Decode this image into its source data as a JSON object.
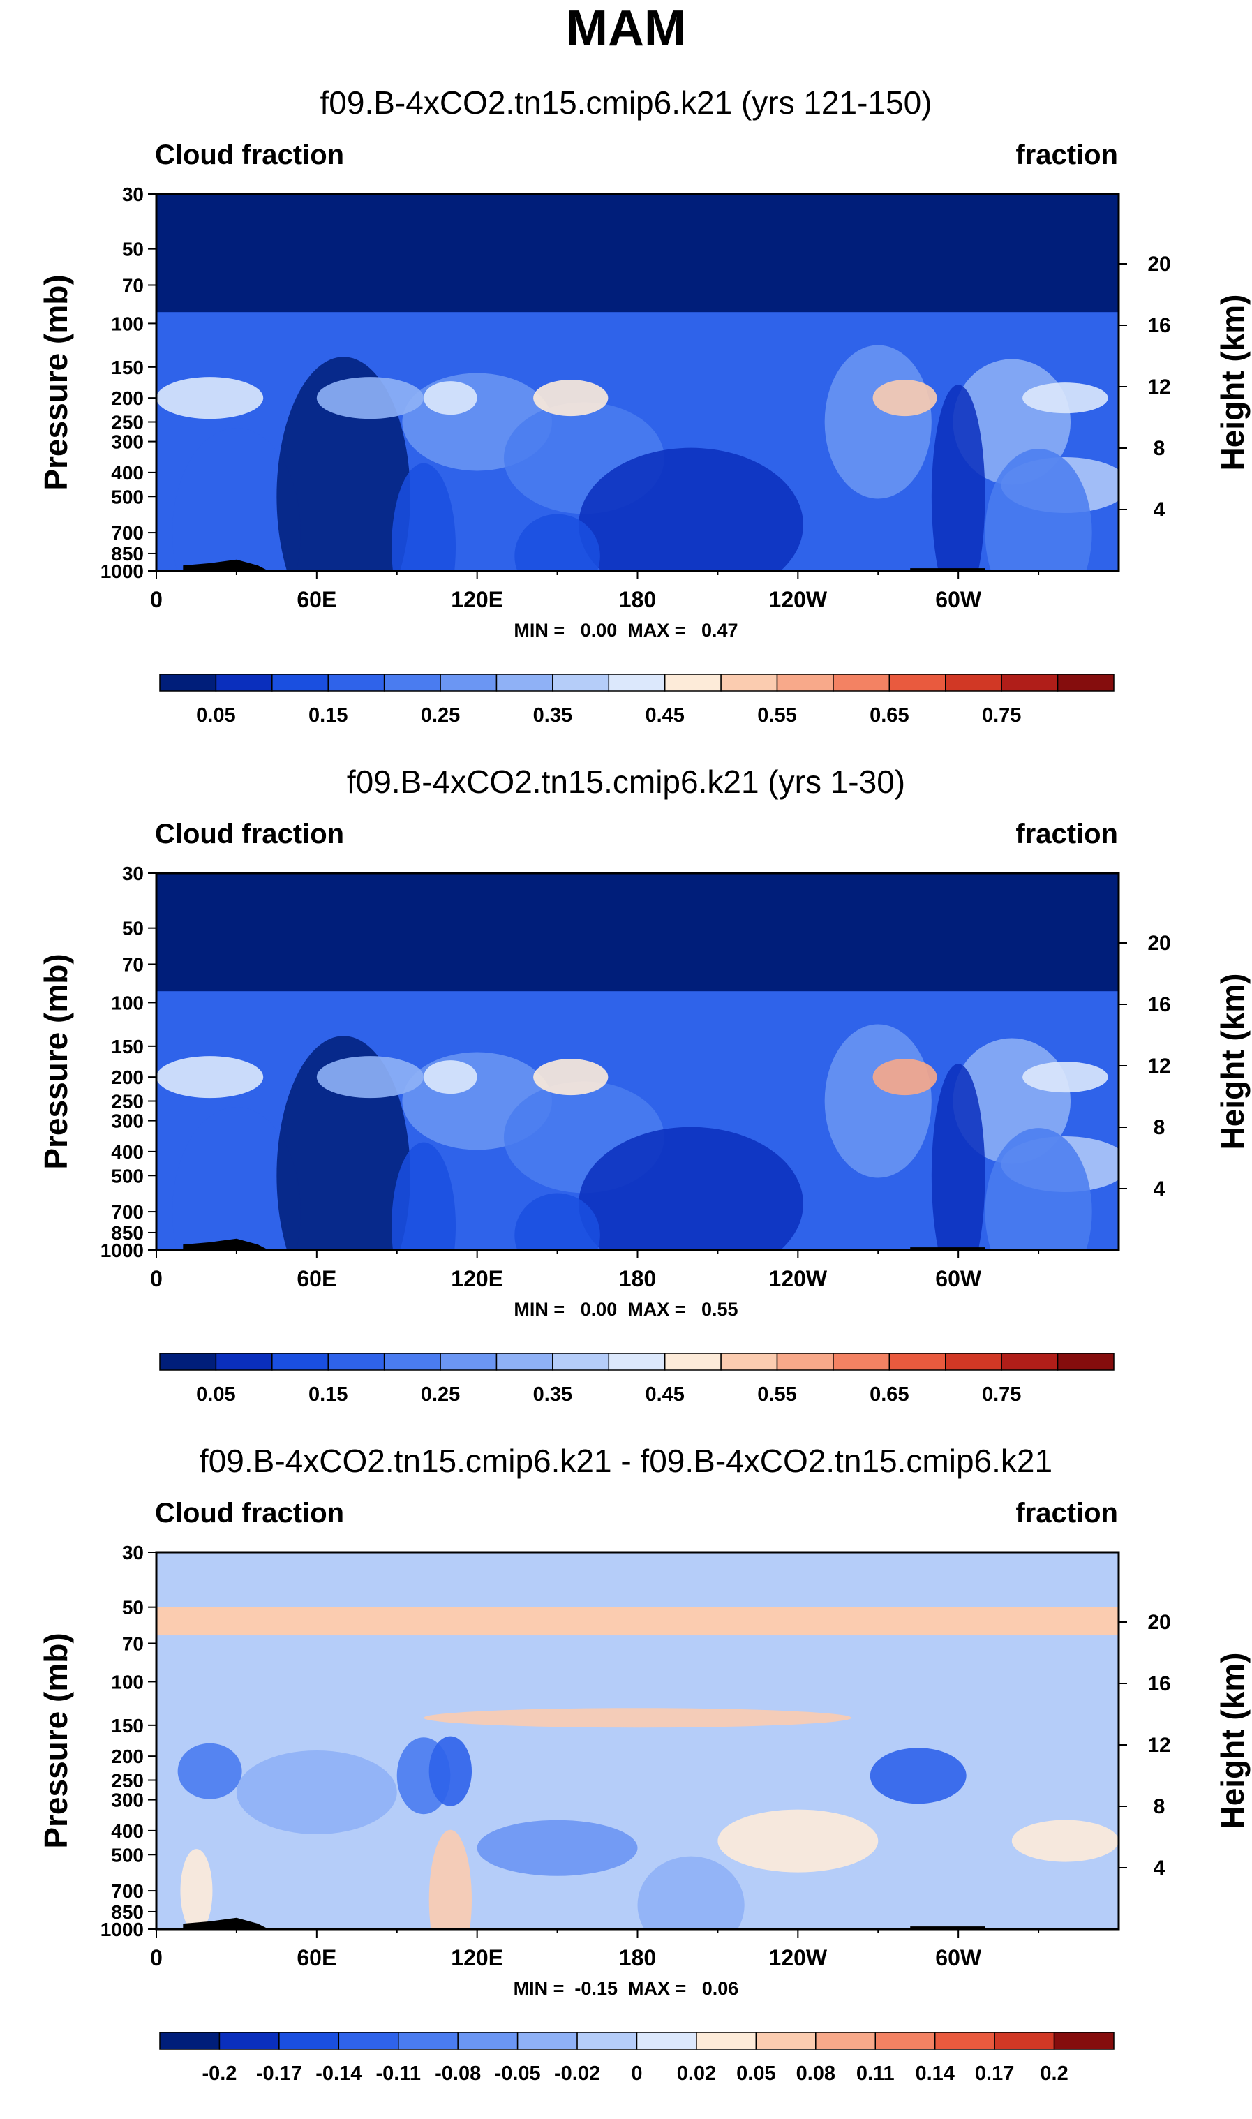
{
  "figure": {
    "season": "MAM"
  },
  "chart_data": [
    {
      "type": "heatmap",
      "title": "f09.B-4xCO2.tn15.cmip6.k21 (yrs 121-150)",
      "variable_label": "Cloud fraction",
      "units_label": "fraction",
      "xlabel": "",
      "ylabel": "Pressure (mb)",
      "y2label": "Height (km)",
      "x_ticks": [
        "0",
        "60E",
        "120E",
        "180",
        "120W",
        "60W"
      ],
      "x_tick_values": [
        0,
        60,
        120,
        180,
        240,
        300
      ],
      "xlim": [
        0,
        360
      ],
      "y_ticks": [
        "30",
        "50",
        "70",
        "100",
        "150",
        "200",
        "250",
        "300",
        "400",
        "500",
        "700",
        "850",
        "1000"
      ],
      "y_tick_values": [
        30,
        50,
        70,
        100,
        150,
        200,
        250,
        300,
        400,
        500,
        700,
        850,
        1000
      ],
      "ylim": [
        1000,
        30
      ],
      "y2_ticks": [
        "20",
        "16",
        "12",
        "8",
        "4"
      ],
      "y2_tick_values": [
        20,
        16,
        12,
        8,
        4
      ],
      "stats_text": "MIN =   0.00  MAX =   0.47",
      "min": 0.0,
      "max": 0.47,
      "colorbar_labels": [
        "0.05",
        "0.15",
        "0.25",
        "0.35",
        "0.45",
        "0.55",
        "0.65",
        "0.75"
      ],
      "colorbar_levels": [
        0.0,
        0.05,
        0.1,
        0.15,
        0.2,
        0.25,
        0.3,
        0.35,
        0.4,
        0.45,
        0.5,
        0.55,
        0.6,
        0.65,
        0.7,
        0.75,
        0.8
      ],
      "colorbar_colors": [
        "#001e7a",
        "#0a2fbd",
        "#1a4fe0",
        "#2f63ea",
        "#4a7cf0",
        "#6b96f3",
        "#8fb1f6",
        "#b5cdf9",
        "#dce8fc",
        "#fdebd9",
        "#fbccb0",
        "#f8a98a",
        "#f38263",
        "#e95a3e",
        "#d13825",
        "#b01e19",
        "#850d0d"
      ]
    },
    {
      "type": "heatmap",
      "title": "f09.B-4xCO2.tn15.cmip6.k21 (yrs 1-30)",
      "variable_label": "Cloud fraction",
      "units_label": "fraction",
      "xlabel": "",
      "ylabel": "Pressure (mb)",
      "y2label": "Height (km)",
      "x_ticks": [
        "0",
        "60E",
        "120E",
        "180",
        "120W",
        "60W"
      ],
      "x_tick_values": [
        0,
        60,
        120,
        180,
        240,
        300
      ],
      "xlim": [
        0,
        360
      ],
      "y_ticks": [
        "30",
        "50",
        "70",
        "100",
        "150",
        "200",
        "250",
        "300",
        "400",
        "500",
        "700",
        "850",
        "1000"
      ],
      "y_tick_values": [
        30,
        50,
        70,
        100,
        150,
        200,
        250,
        300,
        400,
        500,
        700,
        850,
        1000
      ],
      "ylim": [
        1000,
        30
      ],
      "y2_ticks": [
        "20",
        "16",
        "12",
        "8",
        "4"
      ],
      "y2_tick_values": [
        20,
        16,
        12,
        8,
        4
      ],
      "stats_text": "MIN =   0.00  MAX =   0.55",
      "min": 0.0,
      "max": 0.55,
      "colorbar_labels": [
        "0.05",
        "0.15",
        "0.25",
        "0.35",
        "0.45",
        "0.55",
        "0.65",
        "0.75"
      ],
      "colorbar_levels": [
        0.0,
        0.05,
        0.1,
        0.15,
        0.2,
        0.25,
        0.3,
        0.35,
        0.4,
        0.45,
        0.5,
        0.55,
        0.6,
        0.65,
        0.7,
        0.75,
        0.8
      ],
      "colorbar_colors": [
        "#001e7a",
        "#0a2fbd",
        "#1a4fe0",
        "#2f63ea",
        "#4a7cf0",
        "#6b96f3",
        "#8fb1f6",
        "#b5cdf9",
        "#dce8fc",
        "#fdebd9",
        "#fbccb0",
        "#f8a98a",
        "#f38263",
        "#e95a3e",
        "#d13825",
        "#b01e19",
        "#850d0d"
      ]
    },
    {
      "type": "heatmap",
      "title": "f09.B-4xCO2.tn15.cmip6.k21 - f09.B-4xCO2.tn15.cmip6.k21",
      "variable_label": "Cloud fraction",
      "units_label": "fraction",
      "xlabel": "",
      "ylabel": "Pressure (mb)",
      "y2label": "Height (km)",
      "x_ticks": [
        "0",
        "60E",
        "120E",
        "180",
        "120W",
        "60W"
      ],
      "x_tick_values": [
        0,
        60,
        120,
        180,
        240,
        300
      ],
      "xlim": [
        0,
        360
      ],
      "y_ticks": [
        "30",
        "50",
        "70",
        "100",
        "150",
        "200",
        "250",
        "300",
        "400",
        "500",
        "700",
        "850",
        "1000"
      ],
      "y_tick_values": [
        30,
        50,
        70,
        100,
        150,
        200,
        250,
        300,
        400,
        500,
        700,
        850,
        1000
      ],
      "ylim": [
        1000,
        30
      ],
      "y2_ticks": [
        "20",
        "16",
        "12",
        "8",
        "4"
      ],
      "y2_tick_values": [
        20,
        16,
        12,
        8,
        4
      ],
      "stats_text": "MIN =  -0.15  MAX =   0.06",
      "min": -0.15,
      "max": 0.06,
      "colorbar_labels": [
        "-0.2",
        "-0.17",
        "-0.14",
        "-0.11",
        "-0.08",
        "-0.05",
        "-0.02",
        "0",
        "0.02",
        "0.05",
        "0.08",
        "0.11",
        "0.14",
        "0.17",
        "0.2"
      ],
      "colorbar_levels": [
        -0.2,
        -0.17,
        -0.14,
        -0.11,
        -0.08,
        -0.05,
        -0.02,
        0,
        0.02,
        0.05,
        0.08,
        0.11,
        0.14,
        0.17,
        0.2
      ],
      "colorbar_colors": [
        "#001e7a",
        "#0a2fbd",
        "#1a4fe0",
        "#2f63ea",
        "#4a7cf0",
        "#6b96f3",
        "#8fb1f6",
        "#b5cdf9",
        "#dce8fc",
        "#fdebd9",
        "#fbccb0",
        "#f8a98a",
        "#f38263",
        "#e95a3e",
        "#d13825",
        "#850d0d"
      ]
    }
  ]
}
